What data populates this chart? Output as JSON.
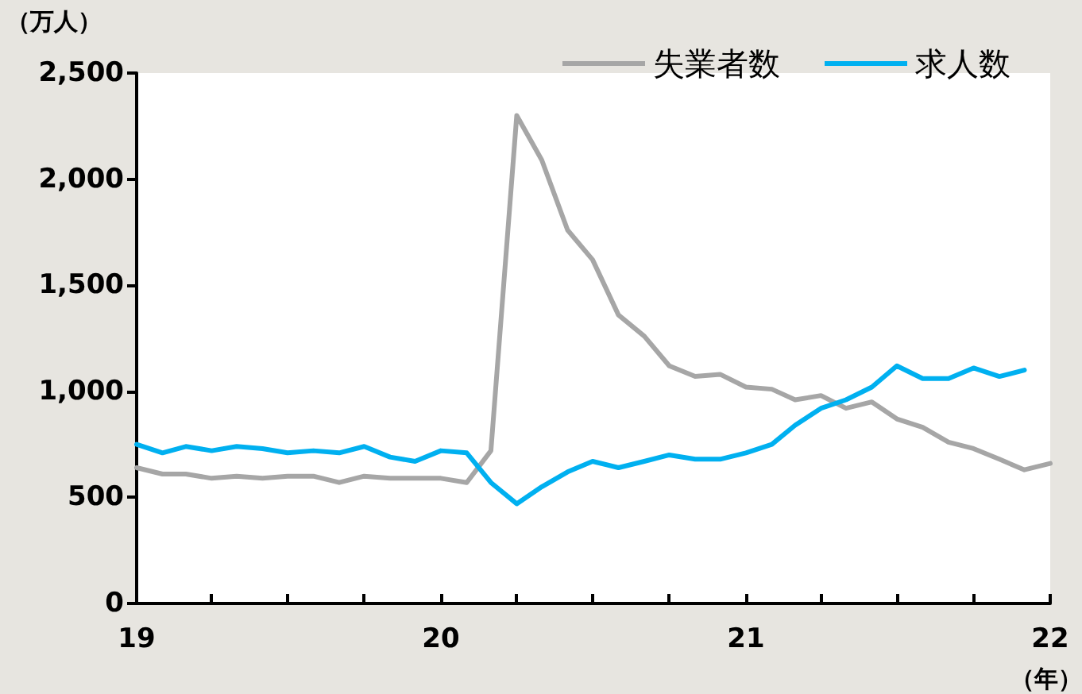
{
  "chart_data": {
    "type": "line",
    "ylabel": "（万人）",
    "xlabel": "（年）",
    "x": [
      "2019-01",
      "2019-02",
      "2019-03",
      "2019-04",
      "2019-05",
      "2019-06",
      "2019-07",
      "2019-08",
      "2019-09",
      "2019-10",
      "2019-11",
      "2019-12",
      "2020-01",
      "2020-02",
      "2020-03",
      "2020-04",
      "2020-05",
      "2020-06",
      "2020-07",
      "2020-08",
      "2020-09",
      "2020-10",
      "2020-11",
      "2020-12",
      "2021-01",
      "2021-02",
      "2021-03",
      "2021-04",
      "2021-05",
      "2021-06",
      "2021-07",
      "2021-08",
      "2021-09",
      "2021-10",
      "2021-11",
      "2021-12",
      "2022-01"
    ],
    "series": [
      {
        "name": "失業者数",
        "color": "#a6a6a6",
        "values": [
          640,
          610,
          610,
          590,
          600,
          590,
          600,
          600,
          570,
          600,
          590,
          590,
          590,
          570,
          720,
          2300,
          2090,
          1760,
          1620,
          1360,
          1260,
          1120,
          1070,
          1080,
          1020,
          1010,
          960,
          980,
          920,
          950,
          870,
          830,
          760,
          730,
          680,
          630,
          660
        ]
      },
      {
        "name": "求人数",
        "color": "#00b0f0",
        "values": [
          750,
          710,
          740,
          720,
          740,
          730,
          710,
          720,
          710,
          740,
          690,
          670,
          720,
          710,
          570,
          470,
          550,
          620,
          670,
          640,
          670,
          700,
          680,
          680,
          710,
          750,
          840,
          920,
          960,
          1020,
          1120,
          1060,
          1060,
          1110,
          1070,
          1100,
          null
        ]
      }
    ],
    "xlim": [
      "2019-01",
      "2022-01"
    ],
    "xticks": [
      {
        "value": "2019-01",
        "label": "19"
      },
      {
        "value": "2019-04",
        "label": null
      },
      {
        "value": "2019-07",
        "label": null
      },
      {
        "value": "2019-10",
        "label": null
      },
      {
        "value": "2020-01",
        "label": "20"
      },
      {
        "value": "2020-04",
        "label": null
      },
      {
        "value": "2020-07",
        "label": null
      },
      {
        "value": "2020-10",
        "label": null
      },
      {
        "value": "2021-01",
        "label": "21"
      },
      {
        "value": "2021-04",
        "label": null
      },
      {
        "value": "2021-07",
        "label": null
      },
      {
        "value": "2021-10",
        "label": null
      },
      {
        "value": "2022-01",
        "label": "22"
      }
    ],
    "ylim": [
      0,
      2500
    ],
    "yticks": [
      0,
      {
        "value": 500,
        "label": "500"
      },
      {
        "value": 1000,
        "label": "1,000"
      },
      {
        "value": 1500,
        "label": "1,500"
      },
      {
        "value": 2000,
        "label": "2,000"
      },
      {
        "value": 2500,
        "label": "2,500"
      }
    ],
    "grid": false,
    "legend": "top right",
    "marker": "none",
    "line_style": "solid"
  }
}
